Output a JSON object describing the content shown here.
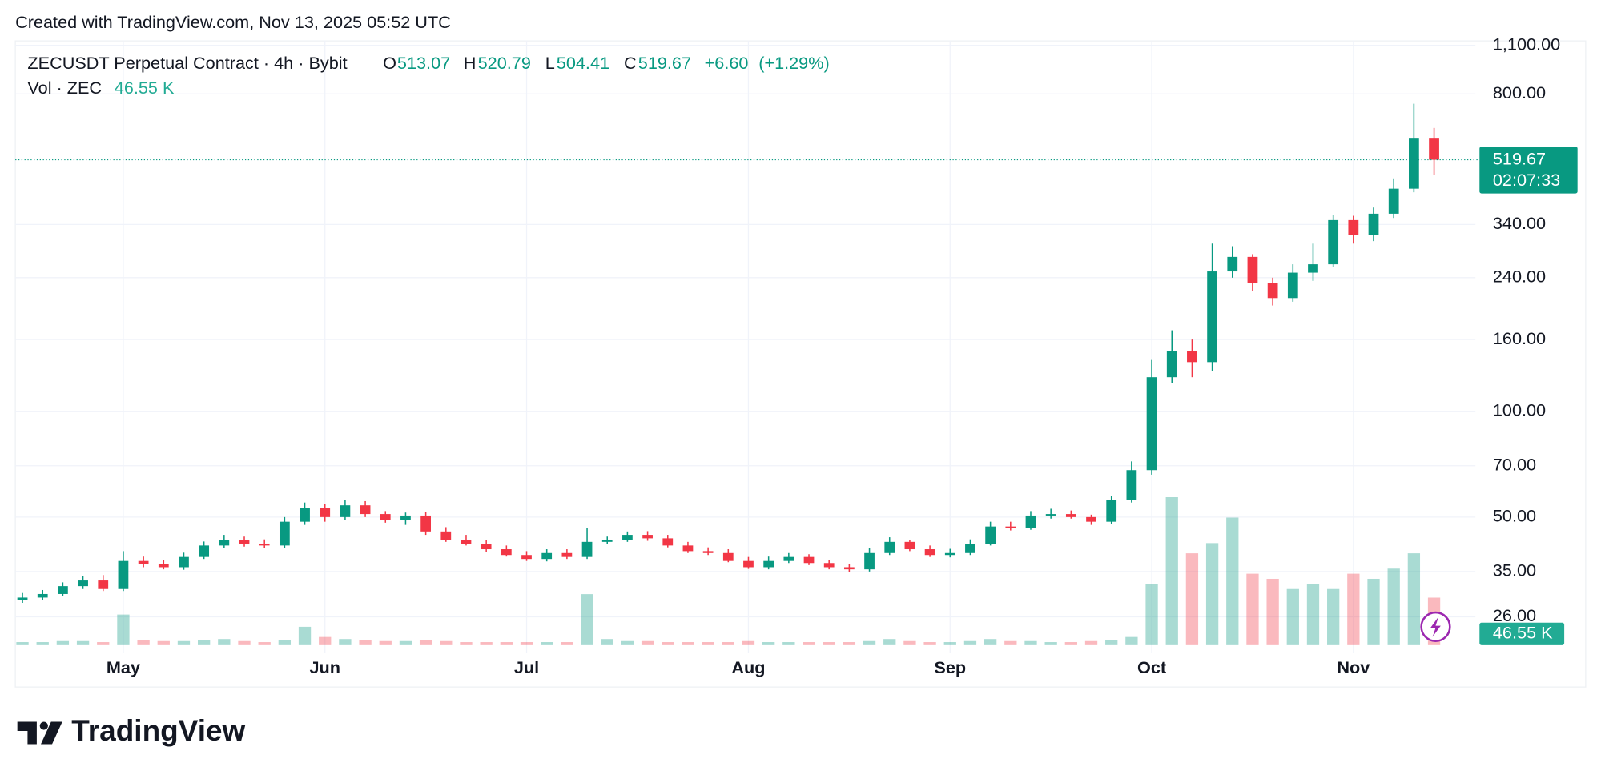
{
  "watermark": "Created with TradingView.com, Nov 13, 2025 05:52 UTC",
  "brand": "TradingView",
  "chart_data": {
    "type": "candlestick",
    "title": "ZECUSDT Perpetual Contract · 4h · Bybit",
    "header": {
      "o_label": "O",
      "open": 513.07,
      "h_label": "H",
      "high": 520.79,
      "l_label": "L",
      "low": 504.41,
      "c_label": "C",
      "close": 519.67,
      "change": {
        "value": 6.6,
        "label": "+6.60"
      },
      "change_pct": {
        "value": 1.29,
        "label": "(+1.29%)"
      }
    },
    "countdown": "02:07:33",
    "categories": [
      null,
      null,
      null,
      null,
      null,
      "May",
      null,
      null,
      null,
      null,
      null,
      null,
      null,
      null,
      null,
      "Jun",
      null,
      null,
      null,
      null,
      null,
      null,
      null,
      null,
      null,
      "Jul",
      null,
      null,
      null,
      null,
      null,
      null,
      null,
      null,
      null,
      null,
      "Aug",
      null,
      null,
      null,
      null,
      null,
      null,
      null,
      null,
      null,
      "Sep",
      null,
      null,
      null,
      null,
      null,
      null,
      null,
      null,
      null,
      "Oct",
      null,
      null,
      null,
      null,
      null,
      null,
      null,
      null,
      null,
      "Nov",
      null,
      null,
      null,
      null
    ],
    "open": [
      29.0,
      29.5,
      30.2,
      31.8,
      33.0,
      31.2,
      37.5,
      36.8,
      36.0,
      38.5,
      41.5,
      43.0,
      42.0,
      41.5,
      48.5,
      53.0,
      50.0,
      54.0,
      51.0,
      49.0,
      50.5,
      45.5,
      43.0,
      42.0,
      40.5,
      39.0,
      38.0,
      39.5,
      38.5,
      42.5,
      43.0,
      44.5,
      43.5,
      41.5,
      40.0,
      39.5,
      37.5,
      36.0,
      37.5,
      38.5,
      37.0,
      36.0,
      35.5,
      39.5,
      42.5,
      40.5,
      39.0,
      39.5,
      42.0,
      47.0,
      46.5,
      50.5,
      51.0,
      50.0,
      48.5,
      56.0,
      68.0,
      125.0,
      148.0,
      138.0,
      250.0,
      275.0,
      232.0,
      210.0,
      248.0,
      262.0,
      350.0,
      318.0,
      365.0,
      430.0,
      600.0
    ],
    "high": [
      30.4,
      31.0,
      32.6,
      34.0,
      34.2,
      40.0,
      38.6,
      37.8,
      39.6,
      42.6,
      44.5,
      44.0,
      43.2,
      50.0,
      55.0,
      54.5,
      56.0,
      55.5,
      52.0,
      51.5,
      51.8,
      46.8,
      44.5,
      43.0,
      41.5,
      40.0,
      40.5,
      40.5,
      46.5,
      44.0,
      45.5,
      45.6,
      44.5,
      42.5,
      41.0,
      40.5,
      38.5,
      38.6,
      39.5,
      39.2,
      37.8,
      36.8,
      40.8,
      43.8,
      43.0,
      41.5,
      40.6,
      43.2,
      48.5,
      48.5,
      52.0,
      52.8,
      52.2,
      50.8,
      57.5,
      72.0,
      140.0,
      170.0,
      160.0,
      300.0,
      295.0,
      280.0,
      240.0,
      262.0,
      300.0,
      362.0,
      360.0,
      380.0,
      460.0,
      750.0,
      640.0
    ],
    "low": [
      28.5,
      29.0,
      29.8,
      31.2,
      30.8,
      30.8,
      36.0,
      35.5,
      35.4,
      38.0,
      40.8,
      41.2,
      40.8,
      40.8,
      47.5,
      48.5,
      49.0,
      50.0,
      48.2,
      47.5,
      44.5,
      42.5,
      41.5,
      39.8,
      38.6,
      37.5,
      37.4,
      38.0,
      38.0,
      42.0,
      42.5,
      42.8,
      41.0,
      39.5,
      39.0,
      37.2,
      35.6,
      35.5,
      37.0,
      36.5,
      35.5,
      34.8,
      35.0,
      39.0,
      40.0,
      38.5,
      38.4,
      39.0,
      41.5,
      45.8,
      46.0,
      49.5,
      49.5,
      47.5,
      47.8,
      55.0,
      66.0,
      120.0,
      125.0,
      130.0,
      240.0,
      220.0,
      200.0,
      205.0,
      235.0,
      258.0,
      300.0,
      305.0,
      355.0,
      420.0,
      470.0
    ],
    "close": [
      29.5,
      30.2,
      31.8,
      33.0,
      31.2,
      37.5,
      36.8,
      36.0,
      38.5,
      41.5,
      43.0,
      42.0,
      41.5,
      48.5,
      53.0,
      50.0,
      54.0,
      51.0,
      49.0,
      50.5,
      45.5,
      43.0,
      42.0,
      40.5,
      39.0,
      38.0,
      39.5,
      38.5,
      42.5,
      43.0,
      44.5,
      43.5,
      41.5,
      40.0,
      39.5,
      37.5,
      36.0,
      37.5,
      38.5,
      37.0,
      36.0,
      35.5,
      39.5,
      42.5,
      40.5,
      39.0,
      39.5,
      42.0,
      47.0,
      46.5,
      50.5,
      51.0,
      50.0,
      48.5,
      56.0,
      68.0,
      125.0,
      148.0,
      138.0,
      250.0,
      275.0,
      232.0,
      210.0,
      248.0,
      262.0,
      350.0,
      318.0,
      365.0,
      430.0,
      600.0,
      519.67
    ],
    "colors": {
      "up": "#089981",
      "down": "#f23645"
    },
    "volume": {
      "name": "Vol · ZEC",
      "last_label": "46.55 K",
      "values": [
        3,
        3,
        4,
        4,
        3,
        30,
        5,
        4,
        4,
        5,
        6,
        4,
        3,
        5,
        18,
        8,
        6,
        5,
        4,
        4,
        5,
        4,
        3,
        3,
        3,
        3,
        3,
        3,
        50,
        6,
        4,
        4,
        3,
        3,
        3,
        3,
        4,
        3,
        3,
        3,
        3,
        3,
        4,
        6,
        4,
        3,
        3,
        4,
        6,
        4,
        4,
        3,
        3,
        4,
        5,
        8,
        60,
        145,
        90,
        100,
        125,
        70,
        65,
        55,
        60,
        55,
        70,
        65,
        75,
        90,
        46.55
      ],
      "ylim": [
        0,
        150
      ]
    },
    "log_scale": true,
    "grid": true,
    "ylim": [
      21.6,
      1132
    ],
    "yticks": [
      {
        "value": 1100,
        "label": "1,100.00"
      },
      {
        "value": 800,
        "label": "800.00"
      },
      {
        "value": 340,
        "label": "340.00"
      },
      {
        "value": 240,
        "label": "240.00"
      },
      {
        "value": 160,
        "label": "160.00"
      },
      {
        "value": 100,
        "label": "100.00"
      },
      {
        "value": 70,
        "label": "70.00"
      },
      {
        "value": 50,
        "label": "50.00"
      },
      {
        "value": 35,
        "label": "35.00"
      },
      {
        "value": 26,
        "label": "26.00"
      }
    ]
  }
}
